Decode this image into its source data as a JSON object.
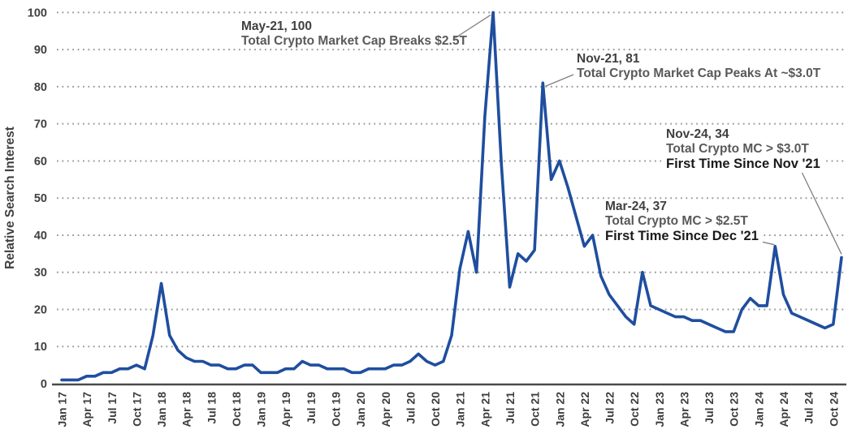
{
  "chart_data": {
    "type": "line",
    "title": "",
    "xlabel": "",
    "ylabel": "Relative Search Interest",
    "ylim": [
      0,
      100
    ],
    "yticks": [
      0,
      10,
      20,
      30,
      40,
      50,
      60,
      70,
      80,
      90,
      100
    ],
    "grid": "horizontal-dotted",
    "legend": "none",
    "line_color": "#1F4E9F",
    "axis_color": "#4a4a4a",
    "gridline_color": "#999999",
    "tick_label_color": "#3d3d3d",
    "leader_line_color": "#7f7f7f",
    "x_start": "Jan 2017",
    "x_end": "Nov 2024",
    "x_interval": "monthly",
    "x_tick_labels": [
      "Jan 17",
      "Apr 17",
      "Jul 17",
      "Oct 17",
      "Jan 18",
      "Apr 18",
      "Jul 18",
      "Oct 18",
      "Jan 19",
      "Apr 19",
      "Jul 19",
      "Oct 19",
      "Jan 20",
      "Apr 20",
      "Jul 20",
      "Oct 20",
      "Jan 21",
      "Apr 21",
      "Jul 21",
      "Oct 21",
      "Jan 22",
      "Apr 22",
      "Jul 22",
      "Oct 22",
      "Jan 23",
      "Apr 23",
      "Jul 23",
      "Oct 23",
      "Jan 24",
      "Apr 24",
      "Jul 24",
      "Oct 24"
    ],
    "series": [
      {
        "name": "Relative Search Interest",
        "values": [
          1,
          1,
          1,
          2,
          2,
          3,
          3,
          4,
          4,
          5,
          4,
          13,
          27,
          13,
          9,
          7,
          6,
          6,
          5,
          5,
          4,
          4,
          5,
          5,
          3,
          3,
          3,
          4,
          4,
          6,
          5,
          5,
          4,
          4,
          4,
          3,
          3,
          4,
          4,
          4,
          5,
          5,
          6,
          8,
          6,
          5,
          6,
          13,
          31,
          41,
          30,
          72,
          100,
          59,
          26,
          35,
          33,
          36,
          81,
          55,
          60,
          53,
          45,
          37,
          40,
          29,
          24,
          21,
          18,
          16,
          30,
          21,
          20,
          19,
          18,
          18,
          17,
          17,
          16,
          15,
          14,
          14,
          20,
          23,
          21,
          21,
          37,
          24,
          19,
          18,
          17,
          16,
          15,
          16,
          34
        ]
      }
    ],
    "annotations": [
      {
        "id": "may-21",
        "title": "May-21, 100",
        "desc": "Total Crypto Market Cap Breaks $2.5T",
        "highlight": "",
        "month_index": 52,
        "value": 100
      },
      {
        "id": "nov-21",
        "title": "Nov-21, 81",
        "desc": "Total Crypto Market Cap Peaks At ~$3.0T",
        "highlight": "",
        "month_index": 58,
        "value": 81
      },
      {
        "id": "nov-24",
        "title": "Nov-24, 34",
        "desc": "Total Crypto MC > $3.0T",
        "highlight": "First Time Since Nov '21",
        "month_index": 94,
        "value": 34
      },
      {
        "id": "mar-24",
        "title": "Mar-24, 37",
        "desc": "Total Crypto MC > $2.5T",
        "highlight": "First Time Since Dec '21",
        "month_index": 86,
        "value": 37
      }
    ]
  }
}
